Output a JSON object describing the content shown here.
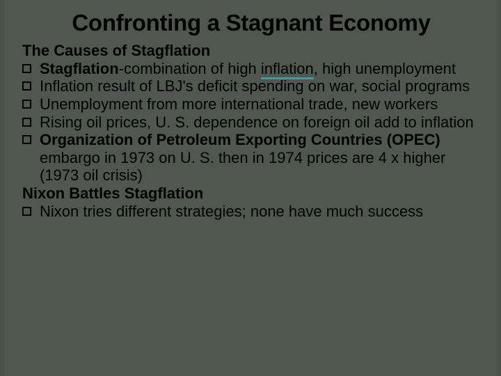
{
  "slide": {
    "background_color": "#4a524a",
    "panel_color": "#4f574f",
    "underline_accent": "#2aa59e",
    "title": "Confronting a Stagnant Economy",
    "section1_head": "The Causes of Stagflation",
    "b1_bold": "Stagflation",
    "b1_mid": "-combination of high ",
    "b1_underlined": "inflation",
    "b1_tail": ", high unemployment",
    "b2": "Inflation result of LBJ's deficit spending on war, social programs",
    "b3": "Unemployment from more international trade, new workers",
    "b4": "Rising oil prices, U. S. dependence on foreign oil add to inflation",
    "b5_bold": "Organization of Petroleum Exporting Countries (OPEC) ",
    "b5_tail": "embargo in 1973 on U. S. then in 1974 prices are 4 x higher (1973 oil crisis)",
    "section2_head": "Nixon Battles Stagflation",
    "b6": "Nixon tries different strategies; none have much success"
  }
}
